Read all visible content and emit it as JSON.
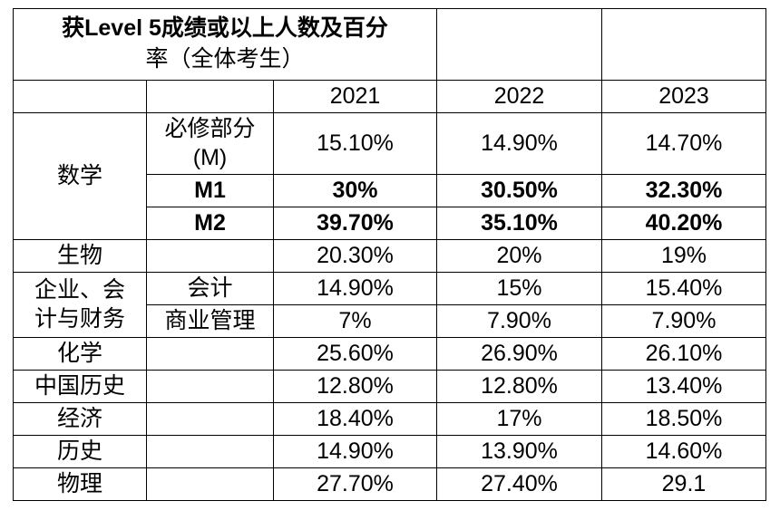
{
  "title_line1": "获Level 5成绩或以上人数及百分",
  "title_line2": "率（全体考生）",
  "years": [
    "2021",
    "2022",
    "2023"
  ],
  "rows": {
    "math": {
      "subject": "数学",
      "compulsory_label_1": "必修部分",
      "compulsory_label_2": "(M)",
      "compulsory": [
        "15.10%",
        "14.90%",
        "14.70%"
      ],
      "m1_label": "M1",
      "m1": [
        "30%",
        "30.50%",
        "32.30%"
      ],
      "m2_label": "M2",
      "m2": [
        "39.70%",
        "35.10%",
        "40.20%"
      ]
    },
    "biology": {
      "subject": "生物",
      "values": [
        "20.30%",
        "20%",
        "19%"
      ]
    },
    "bafs": {
      "subject_line1": "企业、会",
      "subject_line2": "计与财务",
      "accounting_label": "会计",
      "accounting": [
        "14.90%",
        "15%",
        "15.40%"
      ],
      "business_label": "商业管理",
      "business": [
        "7%",
        "7.90%",
        "7.90%"
      ]
    },
    "chemistry": {
      "subject": "化学",
      "values": [
        "25.60%",
        "26.90%",
        "26.10%"
      ]
    },
    "chinese_history": {
      "subject": "中国历史",
      "values": [
        "12.80%",
        "12.80%",
        "13.40%"
      ]
    },
    "economics": {
      "subject": "经济",
      "values": [
        "18.40%",
        "17%",
        "18.50%"
      ]
    },
    "history": {
      "subject": "历史",
      "values": [
        "14.90%",
        "13.90%",
        "14.60%"
      ]
    },
    "physics": {
      "subject": "物理",
      "values": [
        "27.70%",
        "27.40%",
        "29.1"
      ]
    }
  }
}
